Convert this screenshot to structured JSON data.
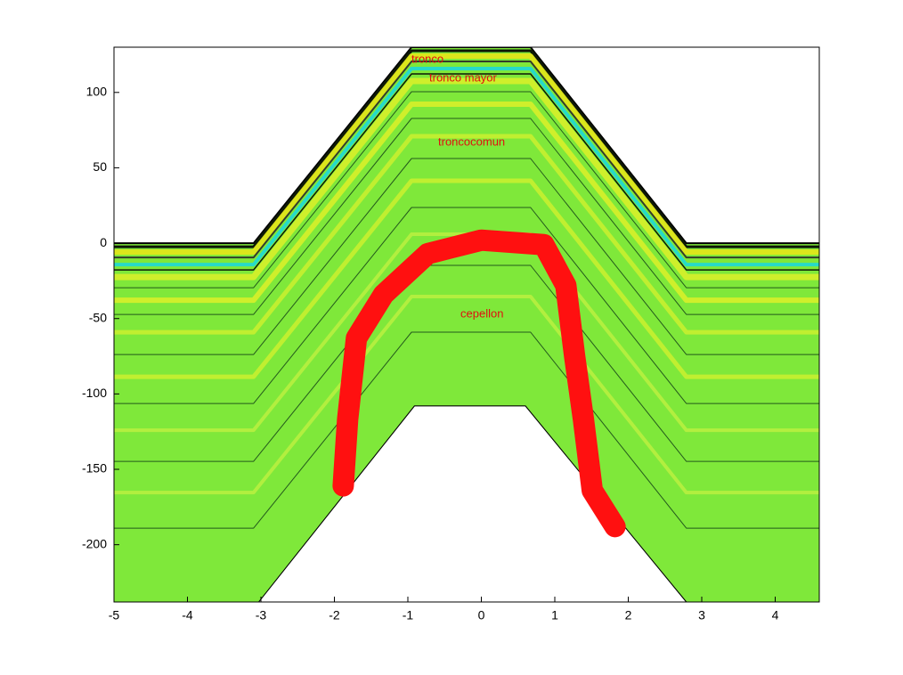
{
  "chart_data": {
    "type": "contour",
    "xlim": [
      -5,
      4.6
    ],
    "ylim": [
      -238,
      130
    ],
    "xticks": [
      -5,
      -4,
      -3,
      -2,
      -1,
      0,
      1,
      2,
      3,
      4
    ],
    "yticks": [
      -200,
      -150,
      -100,
      -50,
      0,
      50,
      100
    ],
    "region": {
      "color": "#7fe83a",
      "x": [
        -5,
        -3.1,
        -0.95,
        0.67,
        2.79,
        4.6
      ],
      "upper": [
        0,
        0,
        130,
        130,
        0,
        0
      ],
      "lower_x": [
        -5,
        -3.03,
        -0.91,
        0.6,
        2.79,
        4.6
      ],
      "lower": [
        -238,
        -238,
        -108,
        -108,
        -238,
        -238
      ]
    },
    "series": [
      {
        "color": "#ff1010",
        "x": [
          -1.88,
          -1.82,
          -1.7,
          -1.33,
          -0.73,
          0,
          0.85,
          1.15,
          1.27,
          1.39,
          1.51,
          1.82
        ],
        "y": [
          -161,
          -117,
          -63,
          -34,
          -7,
          2,
          -1,
          -28,
          -75,
          -117,
          -164,
          -188
        ]
      }
    ],
    "annotations": [
      "tronco",
      "tronco mayor",
      "troncocomun",
      "cepellon"
    ]
  }
}
